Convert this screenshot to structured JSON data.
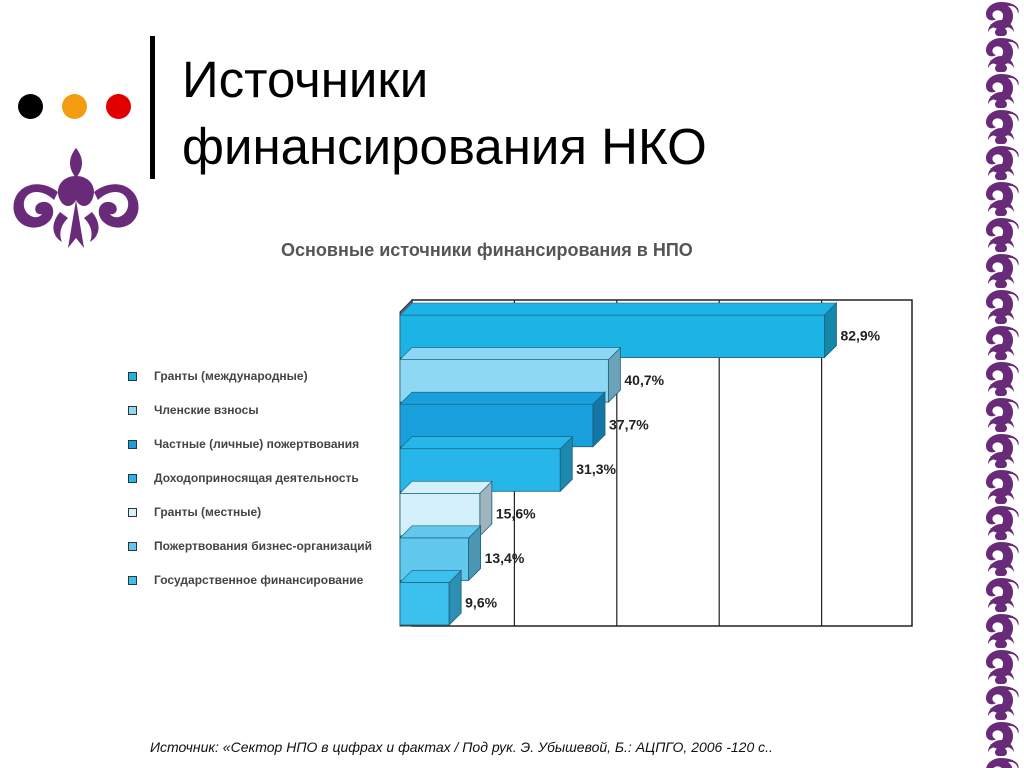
{
  "slide": {
    "title_line1": "Источники",
    "title_line2": "финансирования НКО",
    "source": "Источник: «Сектор НПО в цифрах и фактах / Под рук. Э. Убышевой, Б.: АЦПГО, 2006 -120 с..",
    "dot_colors": [
      "#000000",
      "#f39c12",
      "#e00000"
    ],
    "accent_color": "#6a2a7a"
  },
  "chart_data": {
    "type": "bar",
    "orientation": "horizontal",
    "title": "Основные источники финансирования в НПО",
    "categories": [
      "Гранты (международные)",
      "Членские взносы",
      "Частные (личные) пожертвования",
      "Доходоприносящая деятельность",
      "Гранты (местные)",
      "Пожертвования бизнес-организаций",
      "Государственное финансирование"
    ],
    "values": [
      82.9,
      40.7,
      37.7,
      31.3,
      15.6,
      13.4,
      9.6
    ],
    "value_labels": [
      "82,9%",
      "40,7%",
      "37,7%",
      "31,3%",
      "15,6%",
      "13,4%",
      "9,6%"
    ],
    "colors": [
      "#1cb4e4",
      "#8fd8f4",
      "#199fdc",
      "#26b6ea",
      "#d4f0fa",
      "#62c8ee",
      "#3cc0ee"
    ],
    "xlim": [
      0,
      100
    ],
    "grid": true,
    "legend_position": "left"
  }
}
